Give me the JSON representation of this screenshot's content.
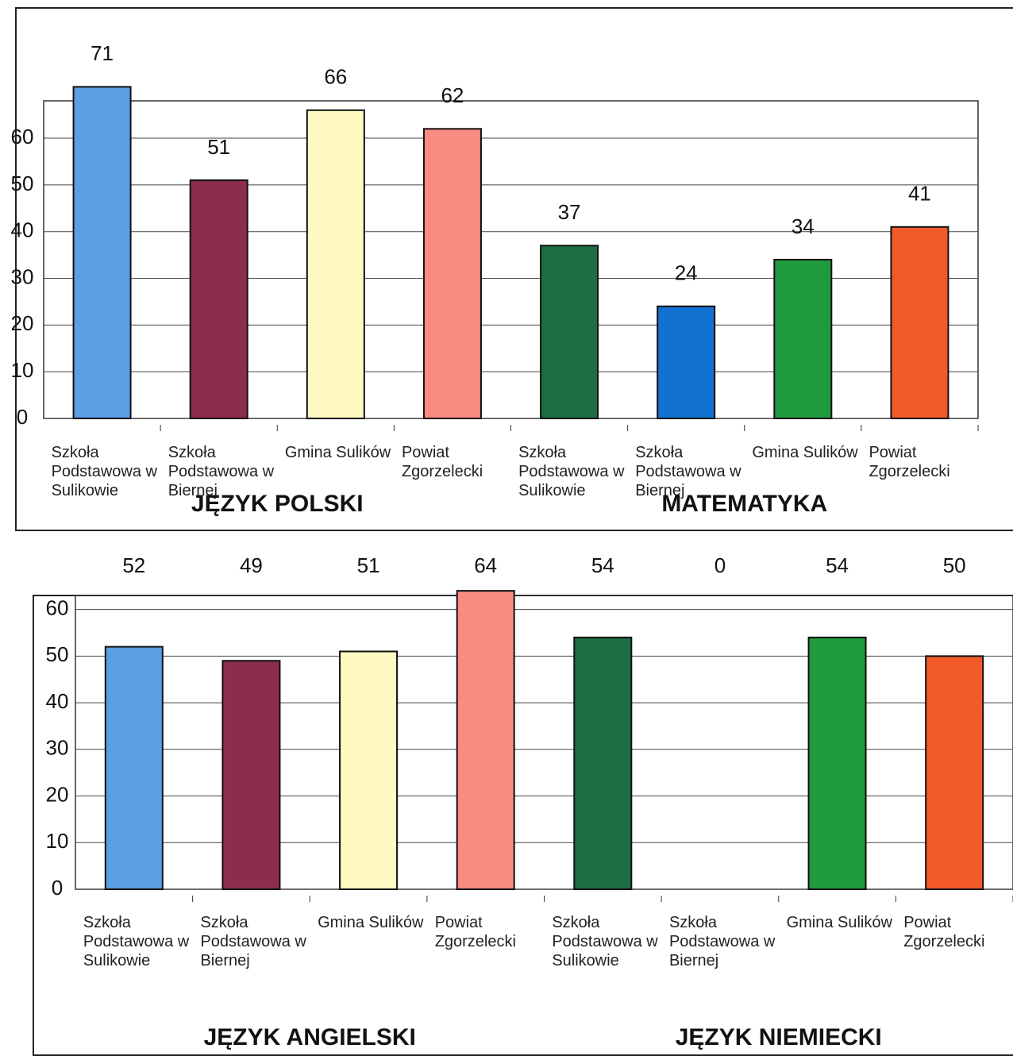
{
  "chart_data": [
    {
      "type": "bar",
      "categories": [
        "Szkoła Podstawowa w Sulikowie",
        "Szkoła Podstawowa w Biernej",
        "Gmina Sulików",
        "Powiat Zgorzelecki",
        "Szkoła Podstawowa w Sulikowie",
        "Szkoła Podstawowa w Biernej",
        "Gmina Sulików",
        "Powiat Zgorzelecki"
      ],
      "values": [
        71,
        51,
        66,
        62,
        37,
        24,
        34,
        41
      ],
      "colors": [
        "#5a9fe2",
        "#8c2c4e",
        "#fff9c2",
        "#f98b82",
        "#1d6e42",
        "#1272d2",
        "#1f9a3c",
        "#f25a2c"
      ],
      "group_labels": [
        "JĘZYK POLSKI",
        "MATEMATYKA"
      ],
      "ylim": [
        0,
        68
      ],
      "yticks": [
        0,
        10,
        20,
        30,
        40,
        50,
        60
      ],
      "grid": true
    },
    {
      "type": "bar",
      "categories": [
        "Szkoła Podstawowa w Sulikowie",
        "Szkoła Podstawowa w Biernej",
        "Gmina Sulików",
        "Powiat Zgorzelecki",
        "Szkoła Podstawowa w Sulikowie",
        "Szkoła Podstawowa w Biernej",
        "Gmina Sulików",
        "Powiat Zgorzelecki"
      ],
      "values": [
        52,
        49,
        51,
        64,
        54,
        0,
        54,
        50
      ],
      "colors": [
        "#5a9fe2",
        "#8c2c4e",
        "#fff9c2",
        "#f98b82",
        "#1d6e42",
        "#1272d2",
        "#1f9a3c",
        "#f25a2c"
      ],
      "group_labels": [
        "JĘZYK ANGIELSKI",
        "JĘZYK NIEMIECKI"
      ],
      "ylim": [
        0,
        63
      ],
      "yticks": [
        0,
        10,
        20,
        30,
        40,
        50,
        60
      ],
      "grid": true
    }
  ]
}
